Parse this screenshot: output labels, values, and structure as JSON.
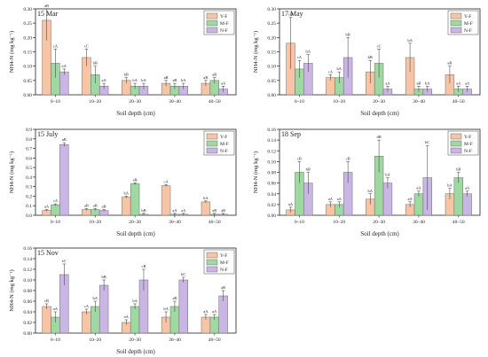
{
  "figure": {
    "legend": [
      {
        "name": "Y-F",
        "color": "#f7c5a6"
      },
      {
        "name": "M-F",
        "color": "#9fd9a1"
      },
      {
        "name": "N-F",
        "color": "#c9b6e4"
      }
    ],
    "edge_color": "#6b6b6b",
    "err_color": "#333333"
  },
  "chart_data": [
    {
      "type": "bar",
      "title": "15 Mar",
      "xlabel": "Soil depth (cm)",
      "ylabel": "NH4-N (mg kg⁻¹)",
      "categories": [
        "0–10",
        "10–20",
        "20–30",
        "30–40",
        "40–50"
      ],
      "ylim": [
        0,
        0.3
      ],
      "yticks": [
        "0.00",
        "0.05",
        "0.10",
        "0.15",
        "0.20",
        "0.25",
        "0.30"
      ],
      "legend_position": "top-right",
      "series": [
        {
          "name": "Y-F",
          "values": [
            0.26,
            0.13,
            0.05,
            0.04,
            0.04
          ],
          "errors": [
            0.07,
            0.03,
            0.01,
            0.01,
            0.01
          ],
          "labels": [
            "aB",
            "cC",
            "bB",
            "aB",
            "aB"
          ]
        },
        {
          "name": "M-F",
          "values": [
            0.11,
            0.07,
            0.03,
            0.03,
            0.05
          ],
          "errors": [
            0.05,
            0.03,
            0.01,
            0.01,
            0.01
          ],
          "labels": [
            "cA",
            "bB",
            "bA",
            "aB",
            "aB"
          ]
        },
        {
          "name": "N-F",
          "values": [
            0.08,
            0.03,
            0.03,
            0.03,
            0.02
          ],
          "errors": [
            0.01,
            0.01,
            0.01,
            0.01,
            0.01
          ],
          "labels": [
            "eA",
            "aA",
            "bA",
            "bA",
            "aA"
          ]
        }
      ]
    },
    {
      "type": "bar",
      "title": "17 May",
      "xlabel": "Soil depth (cm)",
      "ylabel": "NH4-N (mg kg⁻¹)",
      "categories": [
        "0–10",
        "10–20",
        "20–30",
        "30–40",
        "40–50"
      ],
      "ylim": [
        0,
        0.3
      ],
      "yticks": [
        "0.00",
        "0.05",
        "0.10",
        "0.15",
        "0.20",
        "0.25",
        "0.30"
      ],
      "legend_position": "top-right",
      "series": [
        {
          "name": "Y-F",
          "values": [
            0.18,
            0.06,
            0.08,
            0.13,
            0.07
          ],
          "errors": [
            0.09,
            0.01,
            0.04,
            0.05,
            0.03
          ],
          "labels": [
            "cB",
            "cA",
            "bB",
            "bA",
            "aB"
          ]
        },
        {
          "name": "M-F",
          "values": [
            0.09,
            0.06,
            0.11,
            0.02,
            0.02
          ],
          "errors": [
            0.03,
            0.02,
            0.05,
            0.01,
            0.01
          ],
          "labels": [
            "cA",
            "bA",
            "cC",
            "aB",
            "aA"
          ]
        },
        {
          "name": "N-F",
          "values": [
            0.11,
            0.13,
            0.02,
            0.02,
            0.02
          ],
          "errors": [
            0.03,
            0.07,
            0.01,
            0.01,
            0.01
          ],
          "labels": [
            "bA",
            "bB",
            "aA",
            "bA",
            "aA"
          ]
        }
      ]
    },
    {
      "type": "bar",
      "title": "15 July",
      "xlabel": "Soil depth (cm)",
      "ylabel": "NH4-N (mg kg⁻¹)",
      "categories": [
        "0–10",
        "10–20",
        "20–30",
        "30–40",
        "40–50"
      ],
      "ylim": [
        0,
        0.9
      ],
      "yticks": [
        "0.0",
        "0.1",
        "0.2",
        "0.3",
        "0.4",
        "0.5",
        "0.6",
        "0.7",
        "0.8",
        "0.9"
      ],
      "legend_position": "top-right",
      "series": [
        {
          "name": "Y-F",
          "values": [
            0.05,
            0.06,
            0.19,
            0.31,
            0.14
          ],
          "errors": [
            0.01,
            0.01,
            0.01,
            0.01,
            0.01
          ],
          "labels": [
            "aA",
            "aB",
            "bA",
            "cA",
            "bA"
          ]
        },
        {
          "name": "M-F",
          "values": [
            0.11,
            0.06,
            0.33,
            0.01,
            0.01
          ],
          "errors": [
            0.01,
            0.01,
            0.01,
            0.01,
            0.01
          ],
          "labels": [
            "cA",
            "aB",
            "aB",
            "aA",
            "aB"
          ]
        },
        {
          "name": "N-F",
          "values": [
            0.74,
            0.05,
            0.01,
            0.01,
            0.01
          ],
          "errors": [
            0.02,
            0.01,
            0.01,
            0.01,
            0.01
          ],
          "labels": [
            "aB",
            "aB",
            "bB",
            "aA",
            "aB"
          ]
        }
      ]
    },
    {
      "type": "bar",
      "title": "18 Sep",
      "xlabel": "Soil depth (cm)",
      "ylabel": "NH4-N (mg kg⁻¹)",
      "categories": [
        "0–10",
        "10–20",
        "20–30",
        "30–40",
        "40–50"
      ],
      "ylim": [
        0,
        0.16
      ],
      "yticks": [
        "0.00",
        "0.02",
        "0.04",
        "0.06",
        "0.08",
        "0.10",
        "0.12",
        "0.14",
        "0.16"
      ],
      "legend_position": "top-right",
      "series": [
        {
          "name": "Y-F",
          "values": [
            0.01,
            0.02,
            0.03,
            0.02,
            0.04
          ],
          "errors": [
            0.005,
            0.005,
            0.01,
            0.005,
            0.01
          ],
          "labels": [
            "aA",
            "aA",
            "bA",
            "aA",
            "bA"
          ]
        },
        {
          "name": "M-F",
          "values": [
            0.08,
            0.02,
            0.11,
            0.04,
            0.07
          ],
          "errors": [
            0.02,
            0.005,
            0.03,
            0.005,
            0.01
          ],
          "labels": [
            "cB",
            "aA",
            "dB",
            "aA",
            "bB"
          ]
        },
        {
          "name": "N-F",
          "values": [
            0.06,
            0.08,
            0.06,
            0.07,
            0.04
          ],
          "errors": [
            0.02,
            0.02,
            0.01,
            0.06,
            0.005
          ],
          "labels": [
            "bB",
            "cB",
            "bA",
            "bC",
            "aA"
          ]
        }
      ]
    },
    {
      "type": "bar",
      "title": "15 Nov",
      "xlabel": "Soil depth (cm)",
      "ylabel": "NH4-N (mg kg⁻¹)",
      "categories": [
        "0–10",
        "10–20",
        "20–30",
        "30–40",
        "40–50"
      ],
      "ylim": [
        0,
        0.16
      ],
      "yticks": [
        "0.00",
        "0.02",
        "0.04",
        "0.06",
        "0.08",
        "0.10",
        "0.12",
        "0.14",
        "0.16"
      ],
      "legend_position": "top-right",
      "series": [
        {
          "name": "Y-F",
          "values": [
            0.05,
            0.04,
            0.02,
            0.03,
            0.03
          ],
          "errors": [
            0.005,
            0.005,
            0.005,
            0.01,
            0.005
          ],
          "labels": [
            "cB",
            "cA",
            "aA",
            "bA",
            "aA"
          ]
        },
        {
          "name": "M-F",
          "values": [
            0.03,
            0.05,
            0.05,
            0.05,
            0.03
          ],
          "errors": [
            0.01,
            0.01,
            0.005,
            0.01,
            0.005
          ],
          "labels": [
            "aA",
            "bA",
            "bA",
            "aB",
            "aA"
          ]
        },
        {
          "name": "N-F",
          "values": [
            0.11,
            0.09,
            0.1,
            0.1,
            0.07
          ],
          "errors": [
            0.02,
            0.01,
            0.02,
            0.005,
            0.01
          ],
          "labels": [
            "eC",
            "bB",
            "cB",
            "bC",
            "aB"
          ]
        }
      ]
    }
  ]
}
